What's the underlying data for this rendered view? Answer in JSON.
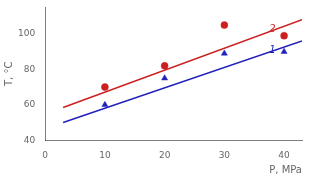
{
  "chart_data": {
    "type": "scatter",
    "xlabel": "P, MPa",
    "ylabel": "T, °C",
    "xlim": [
      0,
      43
    ],
    "ylim": [
      40,
      115
    ],
    "xticks": [
      0,
      10,
      20,
      30,
      40
    ],
    "yticks": [
      40,
      60,
      80,
      100
    ],
    "grid": false,
    "series": [
      {
        "type": "line",
        "color": "#2020bb",
        "line_style": "solid",
        "x": [
          3,
          43
        ],
        "values": [
          50,
          96
        ]
      },
      {
        "type": "line",
        "color": "#cc2020",
        "line_style": "solid",
        "x": [
          3,
          43
        ],
        "values": [
          58.5,
          108
        ]
      },
      {
        "type": "scatter",
        "color": "#2020bb",
        "marker": "triangle",
        "x": [
          10,
          20,
          30,
          40
        ],
        "values": [
          60,
          75,
          89,
          90
        ]
      },
      {
        "type": "scatter",
        "color": "#cc2020",
        "marker": "circle",
        "x": [
          10,
          20,
          30,
          40
        ],
        "values": [
          70,
          82,
          105,
          99
        ]
      }
    ],
    "annotations": [
      {
        "text": "1",
        "x": 37.5,
        "y": 90.5,
        "color": "#2020bb"
      },
      {
        "text": "2",
        "x": 37.5,
        "y": 102.5,
        "color": "#cc2020"
      }
    ]
  }
}
